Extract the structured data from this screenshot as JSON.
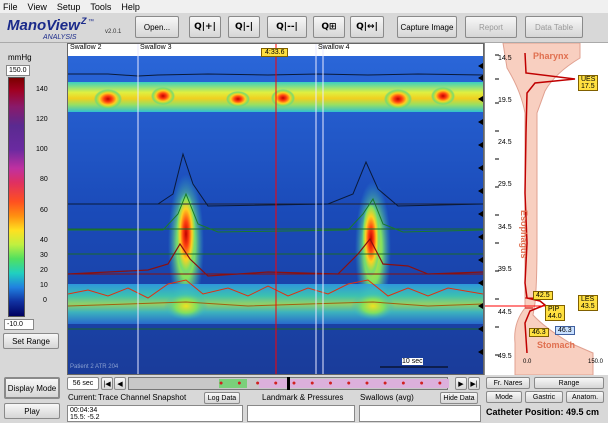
{
  "menu": [
    "File",
    "View",
    "Setup",
    "Tools",
    "Help"
  ],
  "logo": {
    "title": "ManoView",
    "superscript": "Z",
    "tm": "™",
    "subtitle": "ANALYSIS",
    "version": "v2.0.1"
  },
  "toolbar": {
    "open": "Open...",
    "capture": "Capture Image",
    "report": "Report",
    "datatable": "Data Table",
    "zoom_glyphs": [
      "Q|+|",
      "Q|-|",
      "Q|--|",
      "Q⊞",
      "Q|↔|"
    ]
  },
  "scale": {
    "unit": "mmHg",
    "max": "150.0",
    "min": "-10.0",
    "ticks": [
      "140",
      "120",
      "100",
      "80",
      "60",
      "40",
      "30",
      "20",
      "10",
      "0"
    ],
    "set_range": "Set Range"
  },
  "plot": {
    "swallows": [
      "Swallow 2",
      "Swallow 3",
      "Swallow 4"
    ],
    "cursor_time": "4:33.6",
    "scalebar": "10 sec",
    "watermark": "Patient 2 ATR 204",
    "yticks": [
      "14.5",
      "19.5",
      "24.5",
      "29.5",
      "34.5",
      "39.5",
      "44.5",
      "49.5"
    ]
  },
  "anatomy": {
    "pharynx": "Pharynx",
    "esophagus": "Esophagus",
    "stomach": "Stomach",
    "ues": "UES",
    "ues_val": "17.5",
    "les": "LES",
    "les_val": "43.5",
    "pip": "PIP",
    "pip_val": "44.0",
    "v42": "42.5",
    "v46a": "46.3",
    "v46b": "46.3",
    "xmin": "0.0",
    "xmax": "150.0",
    "nares": "Fr. Nares",
    "range": "Range",
    "mode": "Mode",
    "gastric": "Gastric",
    "anatomy_btn": "Anatom.",
    "catheter": "Catheter Position: 49.5 cm"
  },
  "bottom": {
    "display_mode": "Display Mode",
    "play": "Play",
    "speed": "56 sec",
    "current_label": "Current:",
    "current_value": "Trace Channel Snapshot",
    "log_data": "Log Data",
    "landmark": "Landmark & Pressures",
    "swallows_avg": "Swallows (avg)",
    "hide_data": "Hide Data",
    "log_lines": [
      "00:04:34",
      "15.5: -5.2"
    ]
  },
  "colors": {
    "accent": "#1a2a8a",
    "cursor": "#ff0000",
    "badge": "#ffe040"
  }
}
